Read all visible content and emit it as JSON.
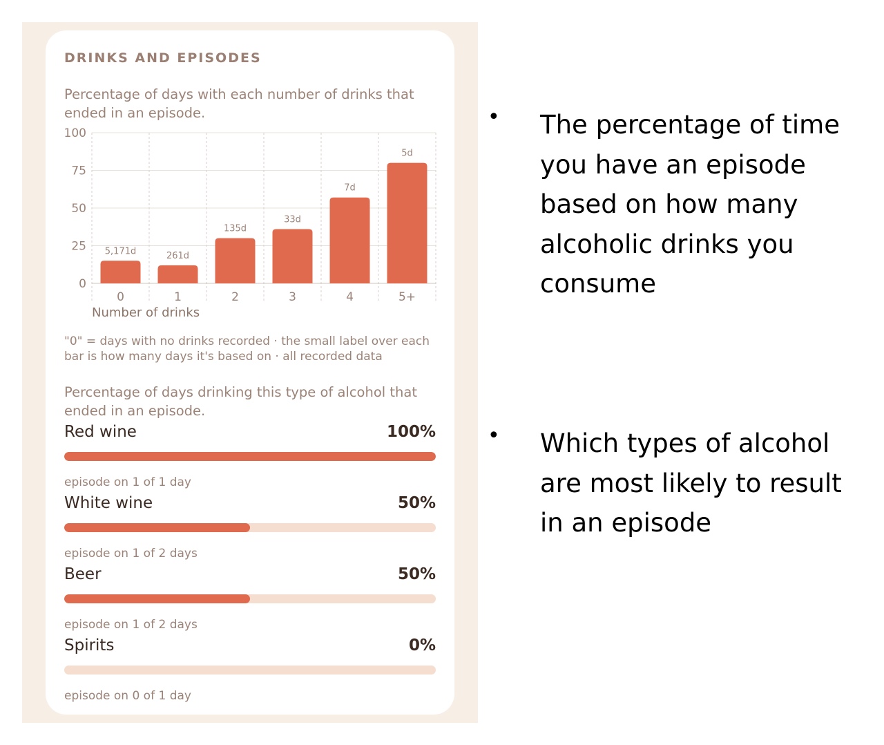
{
  "card": {
    "title": "DRINKS AND EPISODES",
    "chart_subtitle": "Percentage of days with each number of drinks that ended in an episode.",
    "footnote": "\"0\" = days with no drinks recorded · the small label over each bar is how many days it's based on · all recorded data",
    "types_subtitle": "Percentage of days drinking this type of alcohol that ended in an episode.",
    "types": [
      {
        "name": "Red wine",
        "percent_label": "100%",
        "fraction": 1.0,
        "detail": "episode on 1 of 1 day"
      },
      {
        "name": "White wine",
        "percent_label": "50%",
        "fraction": 0.5,
        "detail": "episode on 1 of 2 days"
      },
      {
        "name": "Beer",
        "percent_label": "50%",
        "fraction": 0.5,
        "detail": "episode on 1 of 2 days"
      },
      {
        "name": "Spirits",
        "percent_label": "0%",
        "fraction": 0.0,
        "detail": "episode on 0 of 1 day"
      }
    ]
  },
  "chart_data": {
    "type": "bar",
    "categories": [
      "0",
      "1",
      "2",
      "3",
      "4",
      "5+"
    ],
    "values": [
      15,
      12,
      30,
      36,
      57,
      80
    ],
    "bar_labels": [
      "5,171d",
      "261d",
      "135d",
      "33d",
      "7d",
      "5d"
    ],
    "xlabel": "Number of drinks",
    "ylim": [
      0,
      100
    ],
    "yticks": [
      0,
      25,
      50,
      75,
      100
    ],
    "grid": true,
    "bar_color": "#e06a4e"
  },
  "bullets": [
    "The percentage of time you have an episode based on how many alcoholic drinks you consume",
    "Which types of alcohol are most likely to result in an episode"
  ],
  "bullet_glyph": "•",
  "colors": {
    "accent": "#e06a4e",
    "track": "#f5ddd0",
    "muted_text": "#9b8377",
    "background": "#f7eee6"
  }
}
